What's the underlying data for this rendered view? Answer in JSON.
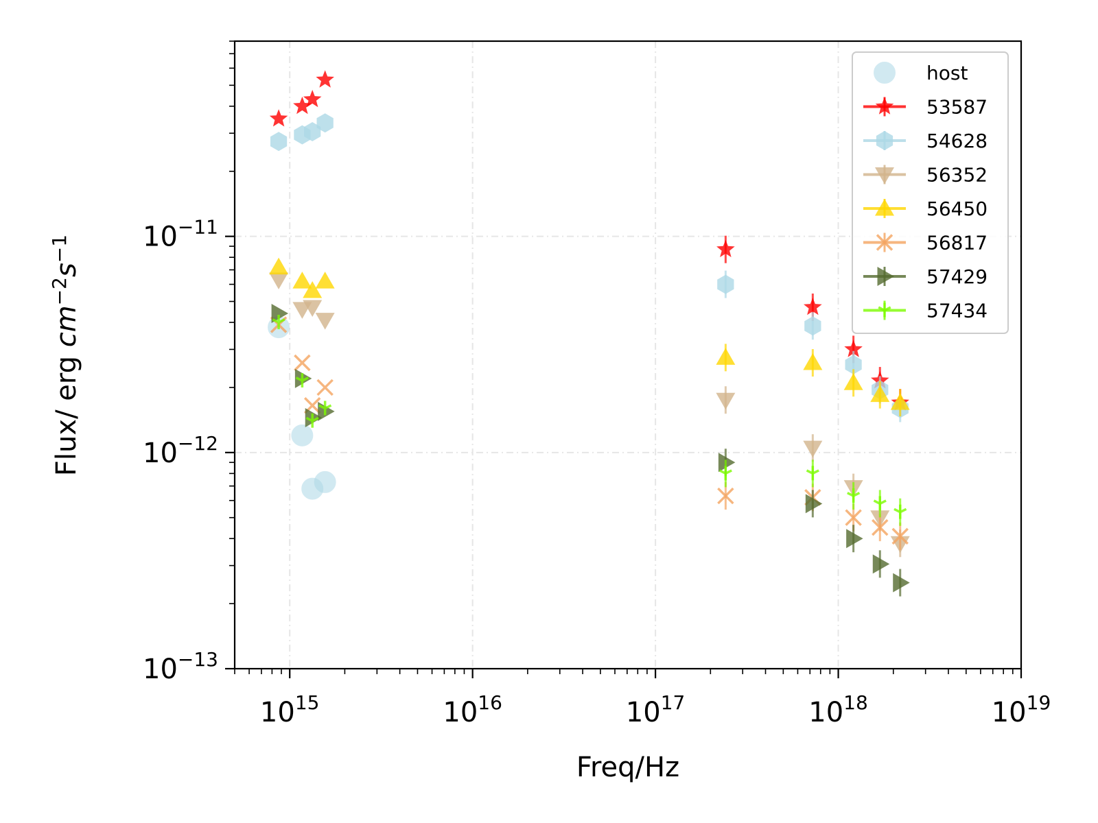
{
  "chart_data": {
    "type": "scatter",
    "title": "",
    "xlabel": "Freq/Hz",
    "ylabel": "Flux/ erg cm^{-2}s^{-1}",
    "ylabel_parts": {
      "base": "Flux/ erg ",
      "italic_cm": "cm",
      "sup1": "−2",
      "italic_s": "s",
      "sup2": "−1"
    },
    "xscale": "log",
    "yscale": "log",
    "xlim": [
      500000000000000.0,
      1e+19
    ],
    "ylim": [
      1e-13,
      8e-11
    ],
    "grid": true,
    "legend_position": "top-right",
    "x_ticks": [
      {
        "value": 1000000000000000.0,
        "base": "10",
        "exp": "15"
      },
      {
        "value": 1e+16,
        "base": "10",
        "exp": "16"
      },
      {
        "value": 1e+17,
        "base": "10",
        "exp": "17"
      },
      {
        "value": 1e+18,
        "base": "10",
        "exp": "18"
      },
      {
        "value": 1e+19,
        "base": "10",
        "exp": "19"
      }
    ],
    "y_ticks": [
      {
        "value": 1e-13,
        "base": "10",
        "exp": "−13"
      },
      {
        "value": 1e-12,
        "base": "10",
        "exp": "−12"
      },
      {
        "value": 1e-11,
        "base": "10",
        "exp": "−11"
      }
    ],
    "series": [
      {
        "name": "host",
        "marker": "circle",
        "color": "#add8e6",
        "points": [
          [
            870000000000000.0,
            3.8e-12
          ],
          [
            1170000000000000.0,
            1.2e-12
          ],
          [
            1330000000000000.0,
            6.8e-13
          ],
          [
            1560000000000000.0,
            7.3e-13
          ]
        ]
      },
      {
        "name": "53587",
        "marker": "star",
        "color": "#ff0000",
        "points": [
          [
            870000000000000.0,
            3.5e-11
          ],
          [
            1170000000000000.0,
            4e-11
          ],
          [
            1330000000000000.0,
            4.3e-11
          ],
          [
            1560000000000000.0,
            5.3e-11
          ],
          [
            2.42e+17,
            8.7e-12
          ],
          [
            7.25e+17,
            4.7e-12
          ],
          [
            1.21e+18,
            3e-12
          ],
          [
            1.69e+18,
            2.15e-12
          ],
          [
            2.18e+18,
            1.7e-12
          ]
        ]
      },
      {
        "name": "54628",
        "marker": "hexagon",
        "color": "#add8e6",
        "points": [
          [
            870000000000000.0,
            2.75e-11
          ],
          [
            1170000000000000.0,
            2.95e-11
          ],
          [
            1330000000000000.0,
            3.05e-11
          ],
          [
            1560000000000000.0,
            3.35e-11
          ],
          [
            2.42e+17,
            6e-12
          ],
          [
            7.25e+17,
            3.85e-12
          ],
          [
            1.21e+18,
            2.55e-12
          ],
          [
            1.69e+18,
            1.95e-12
          ],
          [
            2.18e+18,
            1.6e-12
          ]
        ]
      },
      {
        "name": "56352",
        "marker": "triangle-down",
        "color": "#d2b48c",
        "points": [
          [
            870000000000000.0,
            6.3e-12
          ],
          [
            1170000000000000.0,
            4.6e-12
          ],
          [
            1330000000000000.0,
            4.7e-12
          ],
          [
            1560000000000000.0,
            4.1e-12
          ],
          [
            2.42e+17,
            1.75e-12
          ],
          [
            7.25e+17,
            1.05e-12
          ],
          [
            1.21e+18,
            6.9e-13
          ],
          [
            1.69e+18,
            5e-13
          ],
          [
            2.18e+18,
            3.8e-13
          ]
        ]
      },
      {
        "name": "56450",
        "marker": "triangle-up",
        "color": "#ffd700",
        "points": [
          [
            870000000000000.0,
            7.2e-12
          ],
          [
            1170000000000000.0,
            6.2e-12
          ],
          [
            1330000000000000.0,
            5.6e-12
          ],
          [
            1560000000000000.0,
            6.2e-12
          ],
          [
            2.42e+17,
            2.75e-12
          ],
          [
            7.25e+17,
            2.6e-12
          ],
          [
            1.21e+18,
            2.1e-12
          ],
          [
            1.69e+18,
            1.85e-12
          ],
          [
            2.18e+18,
            1.7e-12
          ]
        ]
      },
      {
        "name": "56817",
        "marker": "asterisk",
        "color": "#f4a460",
        "points": [
          [
            870000000000000.0,
            3.9e-12
          ],
          [
            1170000000000000.0,
            2.6e-12
          ],
          [
            1330000000000000.0,
            1.65e-12
          ],
          [
            1560000000000000.0,
            2e-12
          ],
          [
            2.42e+17,
            6.3e-13
          ],
          [
            7.25e+17,
            6.2e-13
          ],
          [
            1.21e+18,
            5e-13
          ],
          [
            1.69e+18,
            4.5e-13
          ],
          [
            2.18e+18,
            4.1e-13
          ]
        ]
      },
      {
        "name": "57429",
        "marker": "triangle-right",
        "color": "#556b2f",
        "points": [
          [
            870000000000000.0,
            4.4e-12
          ],
          [
            1170000000000000.0,
            2.2e-12
          ],
          [
            1330000000000000.0,
            1.45e-12
          ],
          [
            1560000000000000.0,
            1.55e-12
          ],
          [
            2.42e+17,
            9e-13
          ],
          [
            7.25e+17,
            5.8e-13
          ],
          [
            1.21e+18,
            4e-13
          ],
          [
            1.69e+18,
            3.05e-13
          ],
          [
            2.18e+18,
            2.5e-13
          ]
        ]
      },
      {
        "name": "57434",
        "marker": "tri",
        "color": "#7cfc00",
        "points": [
          [
            870000000000000.0,
            4e-12
          ],
          [
            1170000000000000.0,
            2.15e-12
          ],
          [
            1330000000000000.0,
            1.4e-12
          ],
          [
            1560000000000000.0,
            1.6e-12
          ],
          [
            2.42e+17,
            8e-13
          ],
          [
            7.25e+17,
            8e-13
          ],
          [
            1.21e+18,
            6.3e-13
          ],
          [
            1.69e+18,
            5.8e-13
          ],
          [
            2.18e+18,
            5.3e-13
          ]
        ]
      }
    ]
  }
}
